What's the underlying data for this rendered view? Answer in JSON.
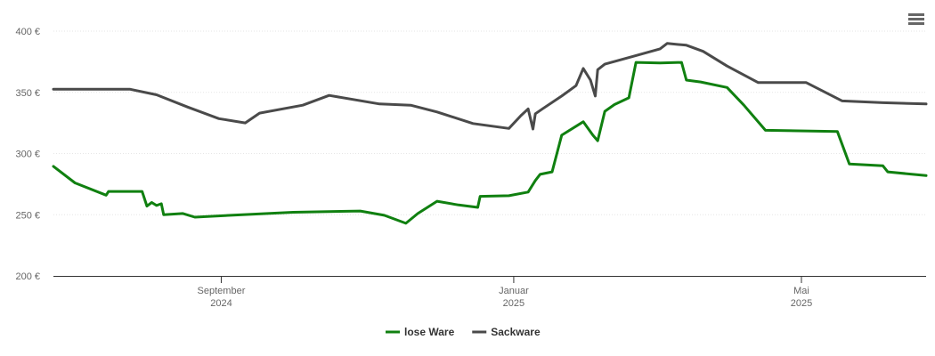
{
  "chart_data": {
    "type": "line",
    "xlim": [
      0,
      364
    ],
    "xticks": [
      {
        "value": 70,
        "label": [
          "September",
          "2024"
        ]
      },
      {
        "value": 192,
        "label": [
          "Januar",
          "2025"
        ]
      },
      {
        "value": 312,
        "label": [
          "Mai",
          "2025"
        ]
      }
    ],
    "ylim": [
      200,
      400
    ],
    "yticks": [
      {
        "value": 200,
        "label": "200 €"
      },
      {
        "value": 250,
        "label": "250 €"
      },
      {
        "value": 300,
        "label": "300 €"
      },
      {
        "value": 350,
        "label": "350 €"
      },
      {
        "value": 400,
        "label": "400 €"
      }
    ],
    "grid": true,
    "legend": "bottom",
    "series": [
      {
        "name": "lose Ware",
        "color": "#108010",
        "x": [
          0,
          9,
          22,
          23,
          37,
          39,
          41,
          43,
          45,
          46,
          54,
          59,
          74,
          100,
          128,
          138,
          147,
          152,
          160,
          169,
          177,
          178,
          190,
          198,
          201,
          203,
          208,
          212,
          221,
          225,
          227,
          230,
          234,
          240,
          243,
          253,
          262,
          264,
          270,
          281,
          288,
          297,
          327,
          332,
          346,
          348,
          364
        ],
        "values": [
          289.5,
          276,
          266,
          269,
          269,
          257,
          260,
          257.5,
          259,
          250,
          251,
          248,
          249.5,
          252,
          253,
          249.5,
          243,
          251,
          261,
          258,
          256,
          265,
          265.5,
          268.5,
          278,
          283,
          285,
          315,
          326,
          315,
          310.5,
          334.5,
          340,
          345.5,
          374.5,
          374,
          374.5,
          360,
          358.5,
          354,
          339.5,
          319,
          318,
          291.5,
          290,
          285,
          282
        ]
      },
      {
        "name": "Sackware",
        "color": "#4a4a4a",
        "x": [
          0,
          32,
          43,
          56,
          69,
          80,
          86,
          104,
          115,
          136,
          149,
          160,
          175,
          190,
          195,
          198,
          200,
          201,
          204,
          212,
          218,
          221,
          224,
          226,
          227,
          230,
          242,
          253,
          256,
          264,
          271,
          281,
          294,
          314,
          329,
          346,
          364
        ],
        "values": [
          352.5,
          352.5,
          348,
          338,
          328.5,
          325,
          333,
          339.5,
          347.5,
          340.5,
          339.5,
          334,
          324.5,
          320.5,
          331,
          336.5,
          320,
          332.5,
          336.5,
          347,
          355.5,
          369.5,
          360,
          347,
          368.5,
          373,
          379.5,
          385.5,
          390,
          388.5,
          383.5,
          371.5,
          358,
          358,
          343,
          341.5,
          340.5
        ]
      }
    ]
  }
}
